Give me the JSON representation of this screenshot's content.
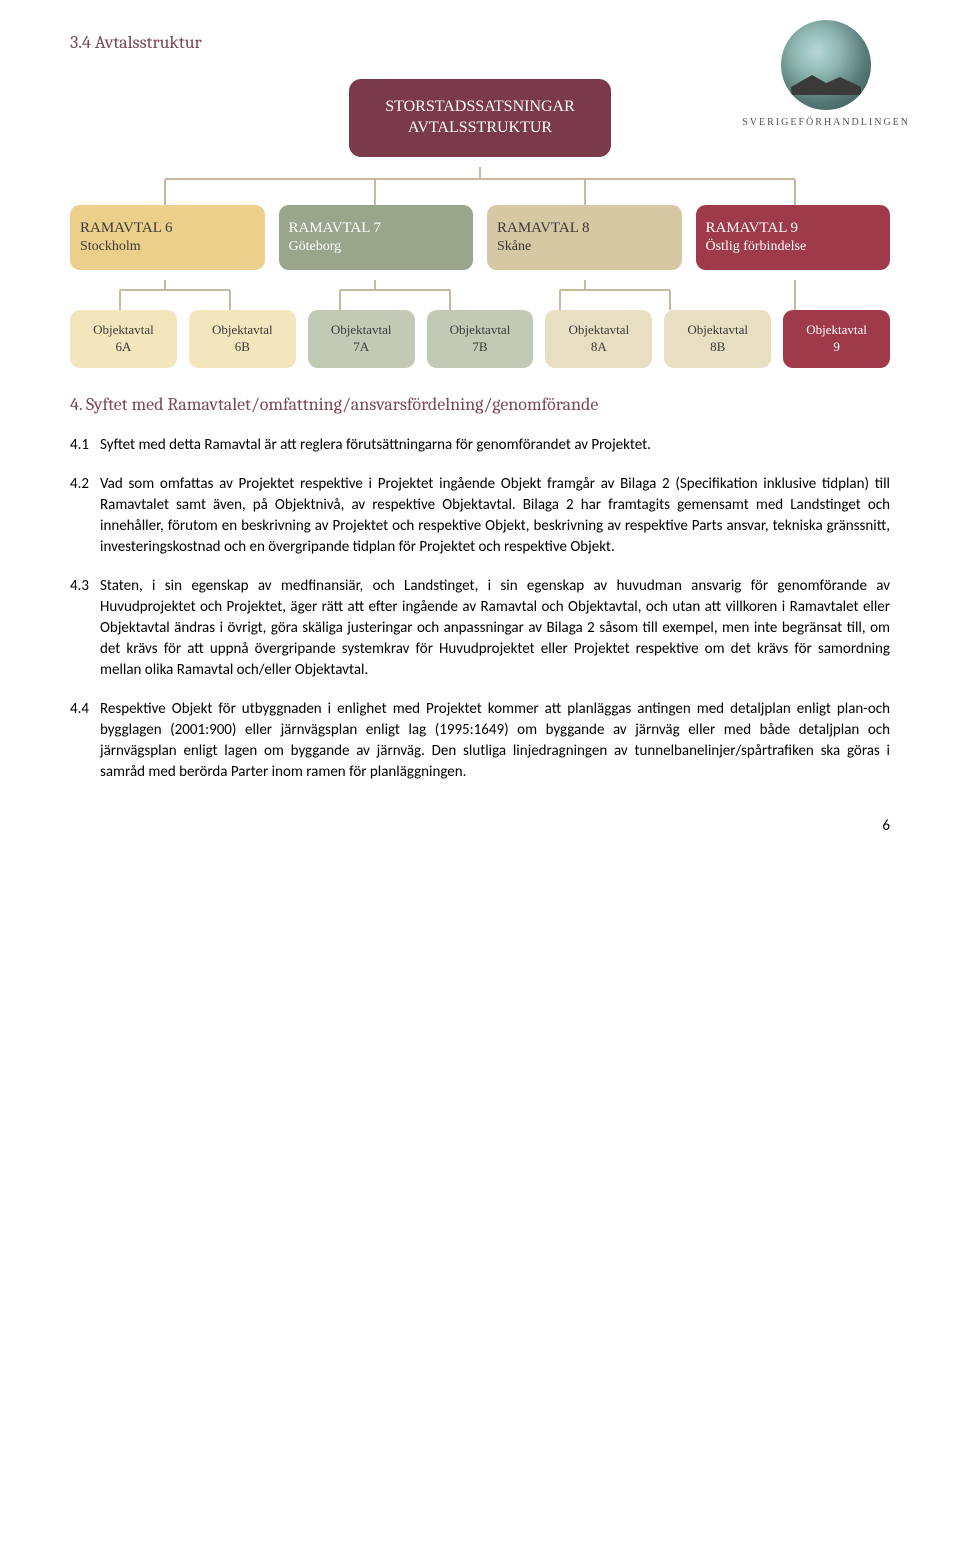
{
  "logo_caption": "SVERIGEFÖRHANDLINGEN",
  "heading_34": "3.4 Avtalsstruktur",
  "heading_4": "4. Syftet med Ramavtalet/omfattning/ansvarsfördelning/genomförande",
  "diagram": {
    "root": {
      "line1": "STORSTADSSATSNINGAR",
      "line2": "AVTALSSTRUKTUR",
      "bg": "#7a3a4a"
    },
    "ram": [
      {
        "title": "RAMAVTAL 6",
        "sub": "Stockholm",
        "bg": "#eccf8a",
        "cls": "col-yellow"
      },
      {
        "title": "RAMAVTAL 7",
        "sub": "Göteborg",
        "bg": "#99a68b",
        "cls": "col-green"
      },
      {
        "title": "RAMAVTAL 8",
        "sub": "Skåne",
        "bg": "#d7c8a4",
        "cls": "col-tan"
      },
      {
        "title": "RAMAVTAL 9",
        "sub": "Östlig förbindelse",
        "bg": "#9e3a4a",
        "cls": "col-maroon"
      }
    ],
    "obj": [
      {
        "line1": "Objektavtal",
        "line2": "6A",
        "cls": "obj-yellow"
      },
      {
        "line1": "Objektavtal",
        "line2": "6B",
        "cls": "obj-yellow"
      },
      {
        "line1": "Objektavtal",
        "line2": "7A",
        "cls": "obj-green"
      },
      {
        "line1": "Objektavtal",
        "line2": "7B",
        "cls": "obj-green"
      },
      {
        "line1": "Objektavtal",
        "line2": "8A",
        "cls": "obj-tan"
      },
      {
        "line1": "Objektavtal",
        "line2": "8B",
        "cls": "obj-tan"
      },
      {
        "line1": "Objektavtal",
        "line2": "9",
        "cls": "obj-maroon"
      }
    ],
    "connector_color": "#c8b8a0"
  },
  "paras": {
    "p41_num": "4.1",
    "p41": "Syftet med detta Ramavtal är att reglera förutsättningarna för genomförandet av Projektet.",
    "p42_num": "4.2",
    "p42": "Vad som omfattas av Projektet respektive i Projektet ingående Objekt framgår av Bilaga 2 (Specifikation inklusive tidplan) till Ramavtalet samt även, på Objektnivå, av respektive Objektavtal. Bilaga 2 har framtagits gemensamt med Landstinget och innehåller, förutom en beskrivning av Projektet och respektive Objekt, beskrivning av respektive Parts ansvar, tekniska gränssnitt, investeringskostnad och en övergripande tidplan för Projektet och respektive Objekt.",
    "p43_num": "4.3",
    "p43": "Staten, i sin egenskap av medfinansiär, och Landstinget, i sin egenskap av huvudman ansvarig för genomförande av Huvudprojektet och Projektet, äger rätt att efter ingående av Ramavtal och Objektavtal, och utan att villkoren i Ramavtalet eller Objektavtal ändras i övrigt, göra skäliga justeringar och anpassningar av Bilaga 2 såsom till exempel, men inte begränsat till, om det krävs för att uppnå övergripande systemkrav för Huvudprojektet eller Projektet respektive om det krävs för samordning mellan olika Ramavtal och/eller Objektavtal.",
    "p44_num": "4.4",
    "p44": "Respektive Objekt för utbyggnaden i enlighet med Projektet kommer att planläggas antingen med detaljplan enligt plan-och bygglagen (2001:900) eller järnvägsplan enligt lag (1995:1649) om byggande av järnväg eller med både detaljplan och järnvägsplan enligt lagen om byggande av järnväg. Den slutliga linjedragningen av tunnelbanelinjer/spårtrafiken ska göras i samråd med berörda Parter inom ramen för planläggningen."
  },
  "page_number": "6"
}
